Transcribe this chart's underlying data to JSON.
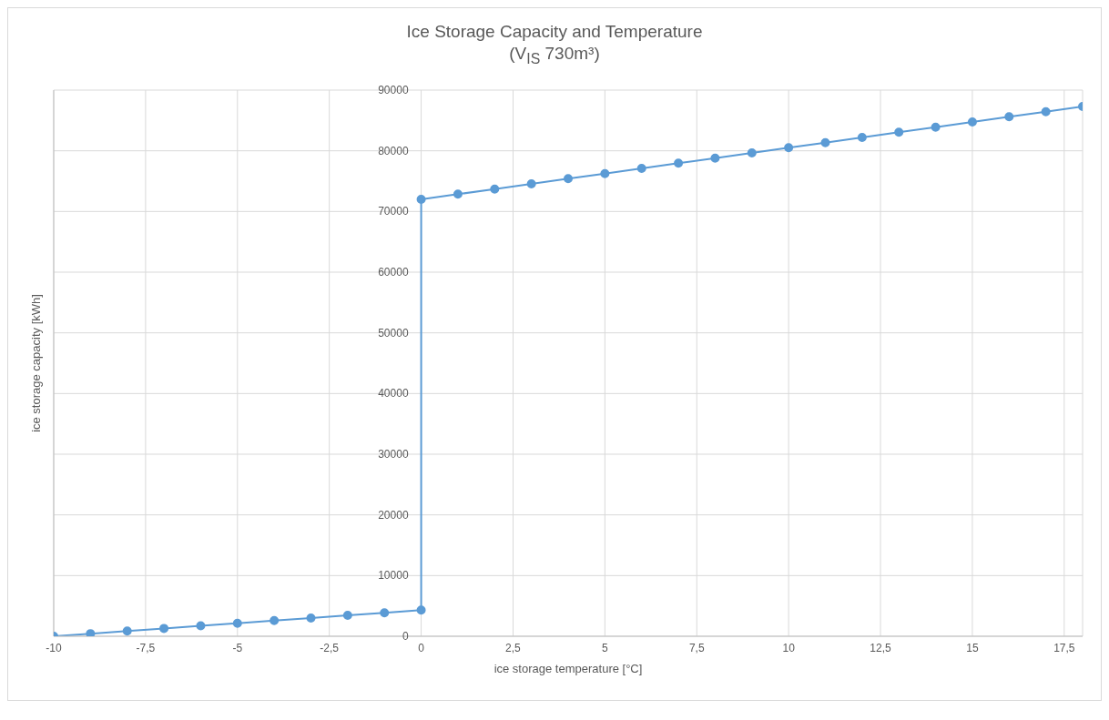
{
  "chart_data": {
    "type": "line",
    "title": "Ice Storage Capacity and Temperature",
    "subtitle": "(V$_{IS}$ 730m³)",
    "xlabel": "ice storage temperature [°C]",
    "ylabel": "ice storage capacity [kWh]",
    "x": [
      -10,
      -9,
      -8,
      -7,
      -6,
      -5,
      -4,
      -3,
      -2,
      -1,
      0,
      0,
      1,
      2,
      3,
      4,
      5,
      6,
      7,
      8,
      9,
      10,
      11,
      12,
      13,
      14,
      15,
      16,
      17,
      18
    ],
    "series": [
      {
        "color": "#5b9bd5",
        "values": [
          0,
          430,
          860,
          1290,
          1720,
          2150,
          2580,
          3010,
          3440,
          3870,
          4300,
          72000,
          72850,
          73700,
          74550,
          75400,
          76250,
          77100,
          77950,
          78800,
          79650,
          80500,
          81350,
          82200,
          83050,
          83900,
          84750,
          85600,
          86450,
          87300
        ]
      }
    ],
    "xlim": [
      -10,
      18
    ],
    "xticks": [
      -10,
      {
        "value": -7.5,
        "label": "-7,5"
      },
      -5,
      {
        "value": -2.5,
        "label": "-2,5"
      },
      0,
      {
        "value": 2.5,
        "label": "2,5"
      },
      5,
      {
        "value": 7.5,
        "label": "7,5"
      },
      10,
      {
        "value": 12.5,
        "label": "12,5"
      },
      15,
      {
        "value": 17.5,
        "label": "17,5"
      }
    ],
    "ylim": [
      0,
      90000
    ],
    "yticks": [
      0,
      10000,
      20000,
      30000,
      40000,
      50000,
      60000,
      70000,
      80000,
      90000
    ],
    "grid": true,
    "legend": false,
    "marker": "circle",
    "line_style": "solid"
  }
}
